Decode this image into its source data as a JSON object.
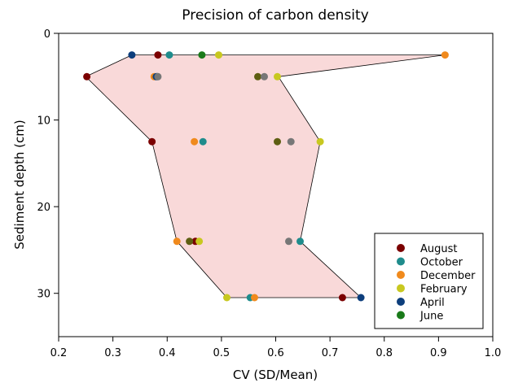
{
  "chart_data": {
    "type": "scatter",
    "title": "Precision of carbon density",
    "xlabel": "CV (SD/Mean)",
    "ylabel": "Sediment depth (cm)",
    "xlim": [
      0.2,
      1.0
    ],
    "ylim": [
      0,
      35
    ],
    "y_inverted": true,
    "xticks": [
      "0.2",
      "0.3",
      "0.4",
      "0.5",
      "0.6",
      "0.7",
      "0.8",
      "0.9",
      "1.0"
    ],
    "yticks": [
      "0",
      "10",
      "20",
      "30"
    ],
    "grid": false,
    "legend_position": "bottom-right",
    "envelope": {
      "fill": "#f9d9d9",
      "min_boundary": [
        [
          0.335,
          2.5
        ],
        [
          0.25,
          5.0
        ],
        [
          0.372,
          12.5
        ],
        [
          0.418,
          24.0
        ],
        [
          0.51,
          30.5
        ]
      ],
      "max_boundary": [
        [
          0.912,
          2.5
        ],
        [
          0.605,
          5.0
        ],
        [
          0.682,
          12.5
        ],
        [
          0.645,
          24.0
        ],
        [
          0.757,
          30.5
        ]
      ]
    },
    "series": [
      {
        "name": "August",
        "color": "#7b0000",
        "points": [
          [
            0.383,
            2.5
          ],
          [
            0.252,
            5.0
          ],
          [
            0.372,
            12.5
          ],
          [
            0.452,
            24.0
          ],
          [
            0.723,
            30.5
          ]
        ]
      },
      {
        "name": "October",
        "color": "#1f8c8c",
        "points": [
          [
            0.404,
            2.5
          ],
          [
            0.382,
            5.0
          ],
          [
            0.466,
            12.5
          ],
          [
            0.645,
            24.0
          ],
          [
            0.553,
            30.5
          ]
        ]
      },
      {
        "name": "December",
        "color": "#f08a1d",
        "points": [
          [
            0.912,
            2.5
          ],
          [
            0.376,
            5.0
          ],
          [
            0.45,
            12.5
          ],
          [
            0.418,
            24.0
          ],
          [
            0.561,
            30.5
          ]
        ]
      },
      {
        "name": "February",
        "color": "#c8c820",
        "points": [
          [
            0.495,
            2.5
          ],
          [
            0.603,
            5.0
          ],
          [
            0.682,
            12.5
          ],
          [
            0.459,
            24.0
          ],
          [
            0.51,
            30.5
          ]
        ]
      },
      {
        "name": "April",
        "color": "#0d3e7c",
        "points": [
          [
            0.335,
            2.5
          ],
          [
            0.38,
            5.0
          ],
          [
            0.757,
            30.5
          ]
        ]
      },
      {
        "name": "June",
        "color": "#1a7a1a",
        "points": [
          [
            0.464,
            2.5
          ]
        ]
      },
      {
        "name": "",
        "color": "#5e5e12",
        "points": [
          [
            0.567,
            5.0
          ],
          [
            0.603,
            12.5
          ],
          [
            0.441,
            24.0
          ]
        ]
      },
      {
        "name": "",
        "color": "#777777",
        "points": [
          [
            0.579,
            5.0
          ],
          [
            0.628,
            12.5
          ],
          [
            0.624,
            24.0
          ],
          [
            0.383,
            5.0
          ]
        ]
      }
    ]
  }
}
